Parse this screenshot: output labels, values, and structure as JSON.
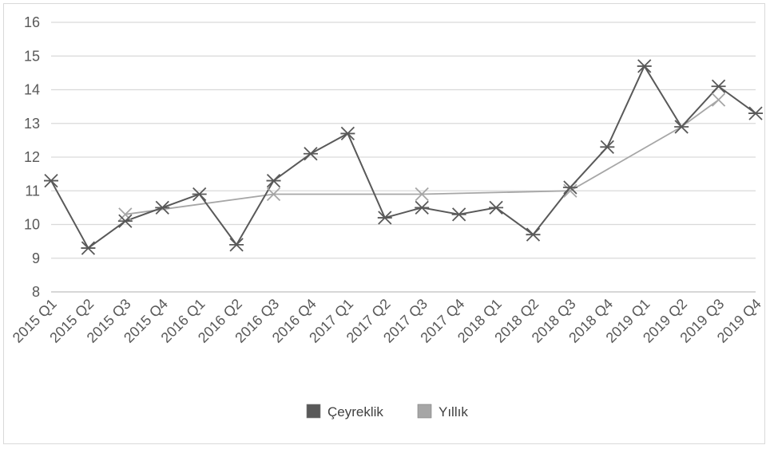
{
  "chart_data": {
    "type": "line",
    "categories": [
      "2015 Q1",
      "2015 Q2",
      "2015 Q3",
      "2015 Q4",
      "2016 Q1",
      "2016 Q2",
      "2016 Q3",
      "2016 Q4",
      "2017 Q1",
      "2017 Q2",
      "2017 Q3",
      "2017 Q4",
      "2018 Q1",
      "2018 Q2",
      "2018 Q3",
      "2018 Q4",
      "2019 Q1",
      "2019 Q2",
      "2019 Q3",
      "2019 Q4"
    ],
    "series": [
      {
        "name": "Çeyreklik",
        "color": "#595959",
        "marker": "star",
        "values": [
          11.3,
          9.3,
          10.1,
          10.5,
          10.9,
          9.4,
          11.3,
          12.1,
          12.7,
          10.2,
          10.5,
          10.3,
          10.5,
          9.7,
          11.1,
          12.3,
          14.7,
          12.9,
          14.1,
          13.3
        ]
      },
      {
        "name": "Yıllık",
        "color": "#a6a6a6",
        "marker": "x",
        "values": [
          null,
          null,
          10.3,
          null,
          null,
          null,
          10.9,
          null,
          null,
          null,
          10.9,
          null,
          null,
          null,
          11.0,
          null,
          null,
          12.9,
          13.7,
          null
        ]
      }
    ],
    "title": "",
    "xlabel": "",
    "ylabel": "",
    "ylim": [
      8,
      16
    ],
    "yticks": [
      8,
      9,
      10,
      11,
      12,
      13,
      14,
      15,
      16
    ],
    "grid": "horizontal",
    "legend_position": "bottom"
  }
}
